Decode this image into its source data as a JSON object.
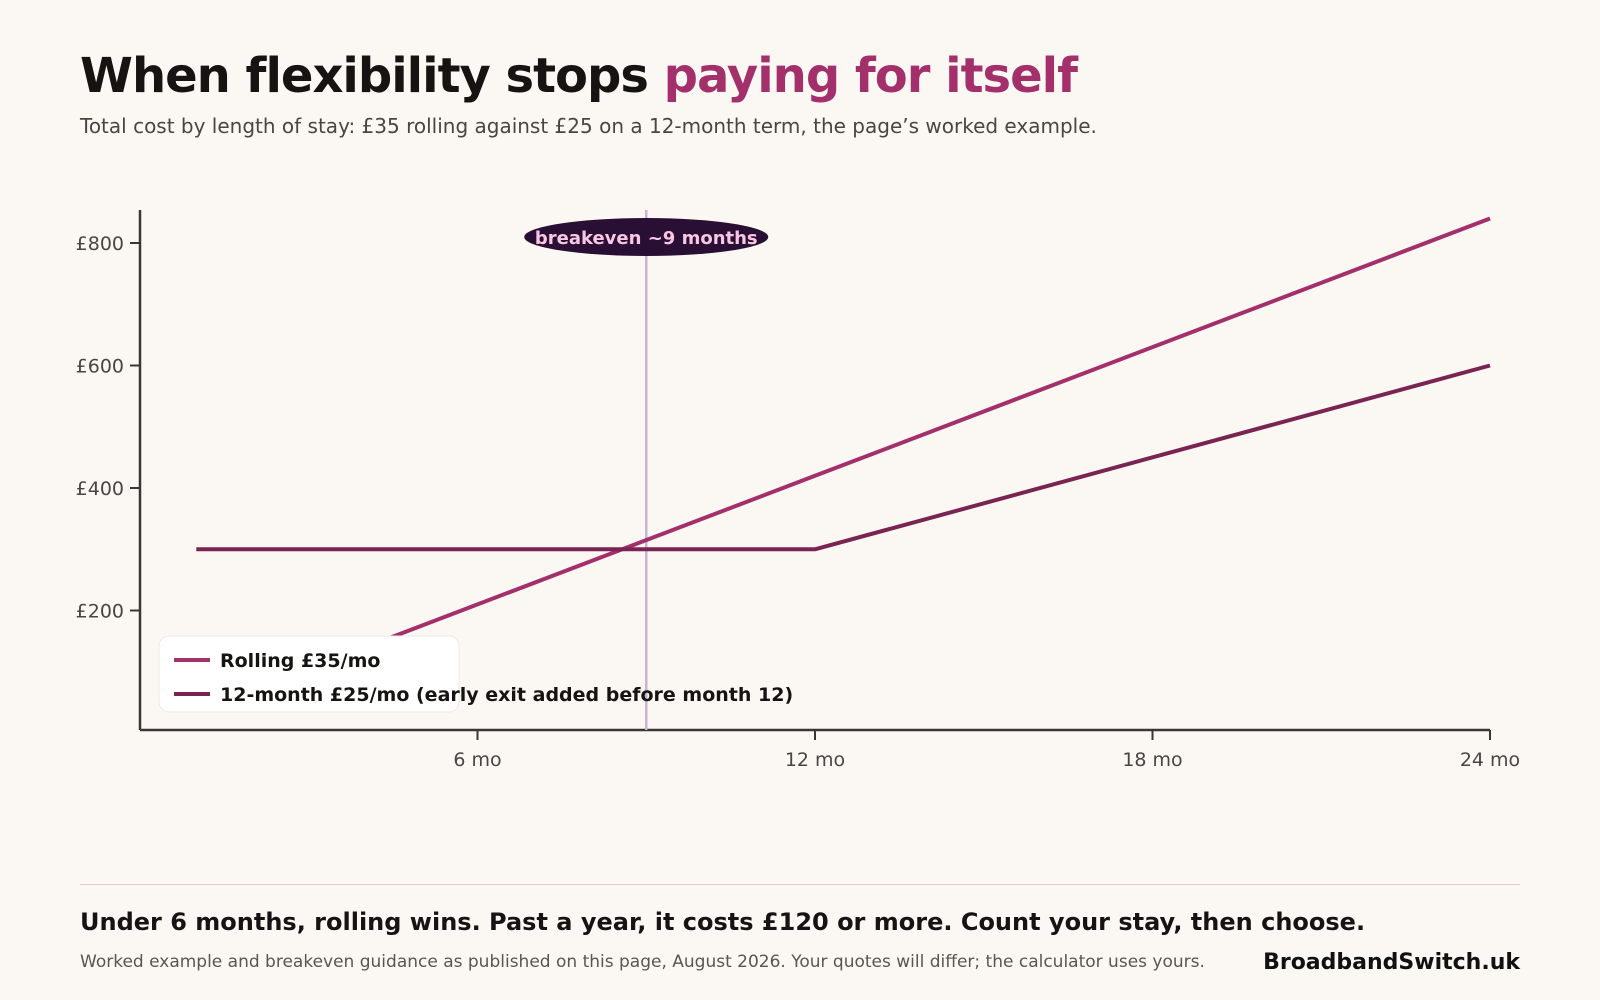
{
  "header": {
    "title_lead": "When flexibility stops ",
    "title_accent": "paying for itself",
    "subtitle": "Total cost by length of stay: £35 rolling against £25 on a 12-month term, the page’s worked example."
  },
  "chart_data": {
    "type": "line",
    "x_unit": "months",
    "x_ticks": [
      {
        "value": 6,
        "label": "6 mo"
      },
      {
        "value": 12,
        "label": "12 mo"
      },
      {
        "value": 18,
        "label": "18 mo"
      },
      {
        "value": 24,
        "label": "24 mo"
      }
    ],
    "y_ticks": [
      {
        "value": 200,
        "label": "£200"
      },
      {
        "value": 400,
        "label": "£400"
      },
      {
        "value": 600,
        "label": "£600"
      },
      {
        "value": 800,
        "label": "£800"
      }
    ],
    "xlim": [
      0,
      24
    ],
    "ylim": [
      0,
      850
    ],
    "series": [
      {
        "name": "Rolling £35/mo",
        "color": "#a3306b",
        "points": [
          [
            4,
            140
          ],
          [
            12,
            420
          ],
          [
            24,
            840
          ]
        ]
      },
      {
        "name": "12-month £25/mo (early exit added before month 12)",
        "color": "#7a2452",
        "points": [
          [
            1,
            300
          ],
          [
            12,
            300
          ],
          [
            24,
            600
          ]
        ]
      }
    ],
    "annotation": {
      "label": "breakeven ~9 months",
      "x": 9,
      "line_color": "#c9b3d3",
      "badge_color": "#2a0f35",
      "text_color": "#f7c7e3"
    },
    "legend_position": "bottom-left",
    "grid": false
  },
  "footer": {
    "takeaway": "Under 6 months, rolling wins.  Past a year, it costs £120 or more.  Count your stay, then choose.",
    "note": "Worked example and breakeven guidance as published on this page, August 2026.  Your quotes will differ; the calculator uses yours.",
    "brand": "BroadbandSwitch.uk"
  }
}
